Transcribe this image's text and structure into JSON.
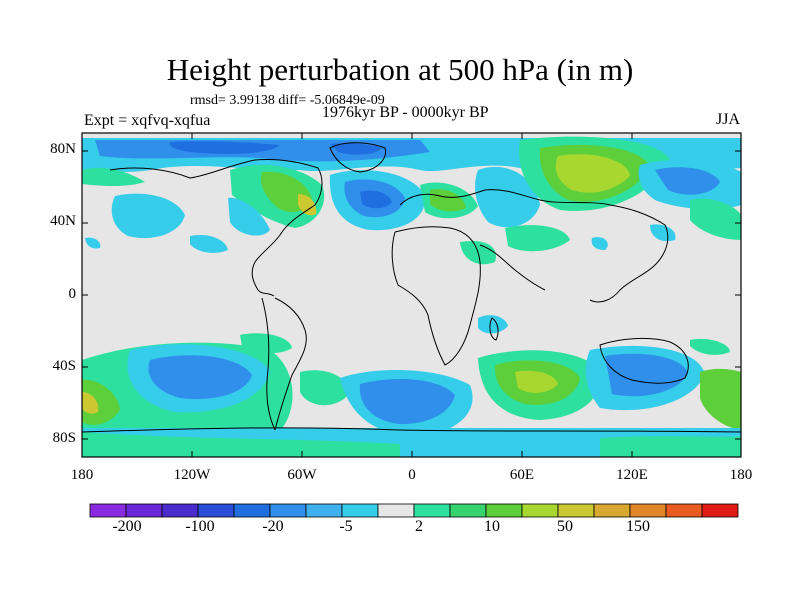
{
  "header": {
    "title": "Height perturbation at 500 hPa (in m)",
    "stats": "rmsd= 3.99138 diff= -5.06849e-09",
    "period": "1976kyr BP - 0000kyr BP",
    "experiment": "Expt = xqfvq-xqfua",
    "season": "JJA"
  },
  "axes": {
    "lat_labels": [
      "80N",
      "40N",
      "0",
      "40S",
      "80S"
    ],
    "lon_labels": [
      "180",
      "120W",
      "60W",
      "0",
      "60E",
      "120E",
      "180"
    ]
  },
  "colorbar": {
    "labels": [
      "-200",
      "-100",
      "-20",
      "-5",
      "2",
      "10",
      "50",
      "150"
    ],
    "colors": [
      "#8a2be2",
      "#6a28d8",
      "#4b2ccc",
      "#2a4ed8",
      "#1f6fe0",
      "#2f8fea",
      "#3fb0ee",
      "#35cdea",
      "#e6e6e6",
      "#2ee0a0",
      "#37d36e",
      "#5ccf3a",
      "#a8d830",
      "#ccc832",
      "#d8a830",
      "#e2862a",
      "#e85a20",
      "#e01a14"
    ]
  },
  "map_fill": {
    "background": "#e6e6e6",
    "neg_strong": "#1f6fe0",
    "neg": "#2f8fea",
    "neg_weak": "#35cdea",
    "pos_weak": "#2ee0a0",
    "pos": "#5ccf3a",
    "pos_strong": "#a8d830",
    "pos_max": "#ccc832"
  }
}
